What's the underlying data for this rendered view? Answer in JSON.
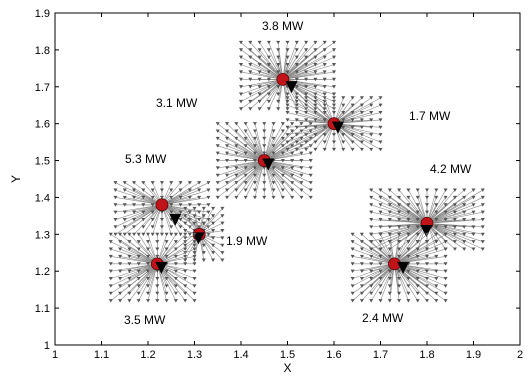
{
  "chart_data": {
    "type": "scatter",
    "title": "",
    "xlabel": "X",
    "ylabel": "Y",
    "xlim": [
      1,
      2
    ],
    "ylim": [
      1,
      1.9
    ],
    "xticks": [
      "1",
      "1.1",
      "1.2",
      "1.3",
      "1.4",
      "1.5",
      "1.6",
      "1.7",
      "1.8",
      "1.9",
      "2"
    ],
    "yticks": [
      "1",
      "1.1",
      "1.2",
      "1.3",
      "1.4",
      "1.5",
      "1.6",
      "1.7",
      "1.8",
      "1.9"
    ],
    "grid": false,
    "colors": {
      "centers": "#c0131a",
      "substations": "#000000",
      "lines": "#8a8a8a",
      "nodes": "#555555"
    },
    "clusters": [
      {
        "label": "3.8 MW",
        "center": [
          1.49,
          1.72
        ],
        "substation": [
          1.5,
          1.71
        ],
        "grid_x": [
          1.4,
          1.6
        ],
        "grid_y": [
          1.64,
          1.83
        ]
      },
      {
        "label": "3.1 MW",
        "center": [
          1.45,
          1.5
        ],
        "substation": [
          1.45,
          1.5
        ],
        "grid_x": [
          1.35,
          1.56
        ],
        "grid_y": [
          1.4,
          1.61
        ]
      },
      {
        "label": "1.7 MW",
        "center": [
          1.6,
          1.6
        ],
        "substation": [
          1.6,
          1.6
        ],
        "grid_x": [
          1.5,
          1.7
        ],
        "grid_y": [
          1.53,
          1.68
        ]
      },
      {
        "label": "5.3 MW",
        "center": [
          1.23,
          1.38
        ],
        "substation": [
          1.25,
          1.35
        ],
        "grid_x": [
          1.13,
          1.33
        ],
        "grid_y": [
          1.3,
          1.45
        ]
      },
      {
        "label": "1.9 MW",
        "center": [
          1.31,
          1.3
        ],
        "substation": [
          1.3,
          1.3
        ],
        "grid_x": [
          1.28,
          1.36
        ],
        "grid_y": [
          1.23,
          1.38
        ]
      },
      {
        "label": "3.5 MW",
        "center": [
          1.22,
          1.22
        ],
        "substation": [
          1.22,
          1.22
        ],
        "grid_x": [
          1.12,
          1.3
        ],
        "grid_y": [
          1.12,
          1.31
        ]
      },
      {
        "label": "4.2 MW",
        "center": [
          1.8,
          1.33
        ],
        "substation": [
          1.79,
          1.32
        ],
        "grid_x": [
          1.68,
          1.92
        ],
        "grid_y": [
          1.26,
          1.43
        ]
      },
      {
        "label": "2.4 MW",
        "center": [
          1.73,
          1.22
        ],
        "substation": [
          1.74,
          1.22
        ],
        "grid_x": [
          1.64,
          1.84
        ],
        "grid_y": [
          1.12,
          1.31
        ]
      }
    ]
  }
}
